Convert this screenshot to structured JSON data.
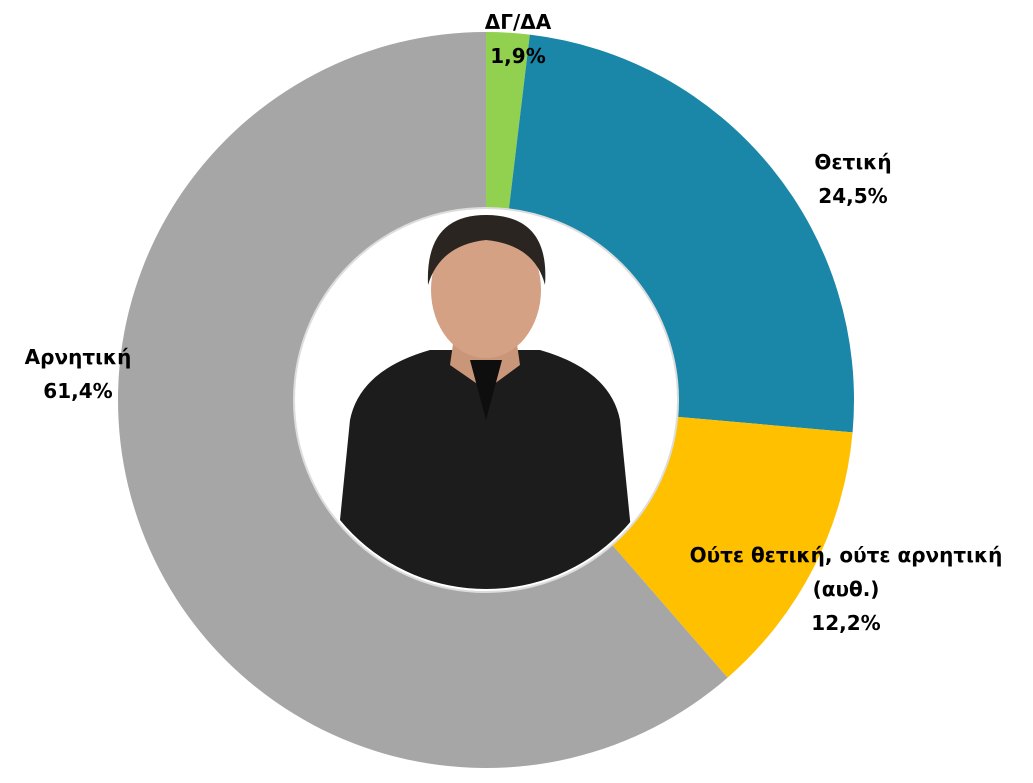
{
  "chart_data": {
    "type": "donut",
    "categories": [
      "ΔΓ/ΔΑ",
      "Θετική",
      "Ούτε θετική, ούτε αρνητική (αυθ.)",
      "Αρνητική"
    ],
    "values": [
      1.9,
      24.5,
      12.2,
      61.4
    ],
    "value_labels": [
      "1,9%",
      "24,5%",
      "12,2%",
      "61,4%"
    ],
    "colors": [
      "#92d050",
      "#1a86a8",
      "#ffc000",
      "#a6a6a6"
    ]
  }
}
